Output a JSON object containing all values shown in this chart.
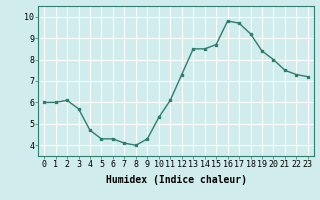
{
  "x": [
    0,
    1,
    2,
    3,
    4,
    5,
    6,
    7,
    8,
    9,
    10,
    11,
    12,
    13,
    14,
    15,
    16,
    17,
    18,
    19,
    20,
    21,
    22,
    23
  ],
  "y": [
    6.0,
    6.0,
    6.1,
    5.7,
    4.7,
    4.3,
    4.3,
    4.1,
    4.0,
    4.3,
    5.3,
    6.1,
    7.3,
    8.5,
    8.5,
    8.7,
    9.8,
    9.7,
    9.2,
    8.4,
    8.0,
    7.5,
    7.3,
    7.2
  ],
  "line_color": "#2e7d6e",
  "marker": "s",
  "marker_size": 2.0,
  "line_width": 1.0,
  "xlabel": "Humidex (Indice chaleur)",
  "ylabel": "",
  "title": "",
  "xlim": [
    -0.5,
    23.5
  ],
  "ylim": [
    3.5,
    10.5
  ],
  "yticks": [
    4,
    5,
    6,
    7,
    8,
    9,
    10
  ],
  "xticks": [
    0,
    1,
    2,
    3,
    4,
    5,
    6,
    7,
    8,
    9,
    10,
    11,
    12,
    13,
    14,
    15,
    16,
    17,
    18,
    19,
    20,
    21,
    22,
    23
  ],
  "xtick_labels": [
    "0",
    "1",
    "2",
    "3",
    "4",
    "5",
    "6",
    "7",
    "8",
    "9",
    "10",
    "11",
    "12",
    "13",
    "14",
    "15",
    "16",
    "17",
    "18",
    "19",
    "20",
    "21",
    "22",
    "23"
  ],
  "background_color": "#d0ecec",
  "grid_color": "#ffffff",
  "tick_fontsize": 6,
  "xlabel_fontsize": 7,
  "xlabel_bold": true
}
